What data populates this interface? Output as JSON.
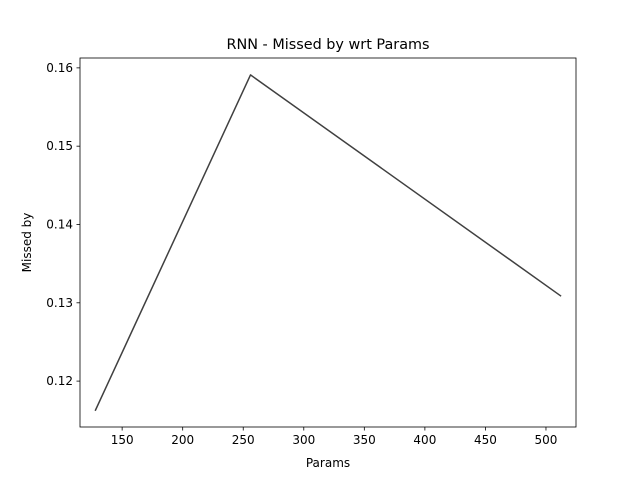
{
  "chart_data": {
    "type": "line",
    "title": "RNN - Missed by wrt Params",
    "xlabel": "Params",
    "ylabel": "Missed by",
    "xlim": [
      115.2,
      524.8
    ],
    "ylim": [
      0.11414,
      0.16126
    ],
    "xticks": [
      150,
      200,
      250,
      300,
      350,
      400,
      450,
      500
    ],
    "yticks": [
      0.12,
      0.13,
      0.14,
      0.15,
      0.16
    ],
    "ytick_labels": [
      "0.12",
      "0.13",
      "0.14",
      "0.15",
      "0.16"
    ],
    "grid": false,
    "line_color": "#404040",
    "series": [
      {
        "x": [
          128,
          256,
          512
        ],
        "y": [
          0.1163,
          0.1591,
          0.1309
        ]
      }
    ]
  }
}
